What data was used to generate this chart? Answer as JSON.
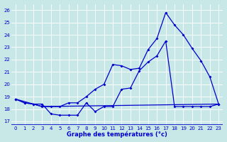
{
  "bg_color": "#c8e8e8",
  "grid_color": "#ffffff",
  "line_color": "#0000cc",
  "xlim": [
    -0.5,
    23.5
  ],
  "ylim": [
    16.7,
    26.5
  ],
  "yticks": [
    17,
    18,
    19,
    20,
    21,
    22,
    23,
    24,
    25,
    26
  ],
  "xticks": [
    0,
    1,
    2,
    3,
    4,
    5,
    6,
    7,
    8,
    9,
    10,
    11,
    12,
    13,
    14,
    15,
    16,
    17,
    18,
    19,
    20,
    21,
    22,
    23
  ],
  "xlabel": "Graphe des températures (°c)",
  "line1_x": [
    0,
    1,
    2,
    3,
    4,
    5,
    6,
    7,
    8,
    9,
    10,
    11,
    12,
    13,
    14,
    15,
    16,
    17,
    18,
    19,
    20,
    21,
    22,
    23
  ],
  "line1_y": [
    18.8,
    18.5,
    18.4,
    18.4,
    17.6,
    17.5,
    17.5,
    17.5,
    18.5,
    17.8,
    18.2,
    18.2,
    19.6,
    19.7,
    21.1,
    21.8,
    22.3,
    23.5,
    18.2,
    18.2,
    18.2,
    18.2,
    18.2,
    18.4
  ],
  "line2_x": [
    0,
    3,
    23
  ],
  "line2_y": [
    18.8,
    18.2,
    18.4
  ],
  "line3_x": [
    0,
    1,
    2,
    3,
    4,
    5,
    6,
    7,
    8,
    9,
    10,
    11,
    12,
    13,
    14,
    15,
    16,
    17,
    18,
    19,
    20,
    21,
    22,
    23
  ],
  "line3_y": [
    18.8,
    18.5,
    18.4,
    18.2,
    18.2,
    18.2,
    18.5,
    18.5,
    19.0,
    19.6,
    20.0,
    21.6,
    21.5,
    21.2,
    21.3,
    22.8,
    23.7,
    25.8,
    24.8,
    24.0,
    22.9,
    21.9,
    20.6,
    18.4
  ]
}
